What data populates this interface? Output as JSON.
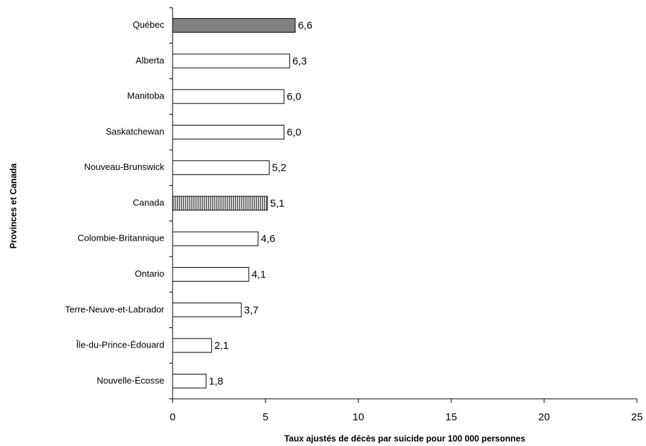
{
  "chart_data": {
    "type": "bar",
    "orientation": "horizontal",
    "x_label": "Taux ajustés de décès par suicide pour 100 000 personnes",
    "y_label": "Provinces et Canada",
    "categories": [
      "Québec",
      "Alberta",
      "Manitoba",
      "Saskatchewan",
      "Nouveau-Brunswick",
      "Canada",
      "Colombie-Britannique",
      "Ontario",
      "Terre-Neuve-et-Labrador",
      "Île-du-Prince-Édouard",
      "Nouvelle-Écosse"
    ],
    "values": [
      6.6,
      6.3,
      6.0,
      6.0,
      5.2,
      5.1,
      4.6,
      4.1,
      3.7,
      2.1,
      1.8
    ],
    "value_labels": [
      "6,6",
      "6,3",
      "6,0",
      "6,0",
      "5,2",
      "5,1",
      "4,6",
      "4,1",
      "3,7",
      "2,1",
      "1,8"
    ],
    "colors": [
      "#808080",
      "#ffffff",
      "#ffffff",
      "#ffffff",
      "#ffffff",
      "#ffffff",
      "#ffffff",
      "#ffffff",
      "#ffffff",
      "#ffffff",
      "#ffffff"
    ],
    "patterns": [
      null,
      null,
      null,
      null,
      null,
      "vertical-stripes",
      null,
      null,
      null,
      null,
      null
    ],
    "xlim": [
      0,
      25
    ],
    "xticks": [
      0,
      5,
      10,
      15,
      20,
      25
    ],
    "grid": false
  }
}
